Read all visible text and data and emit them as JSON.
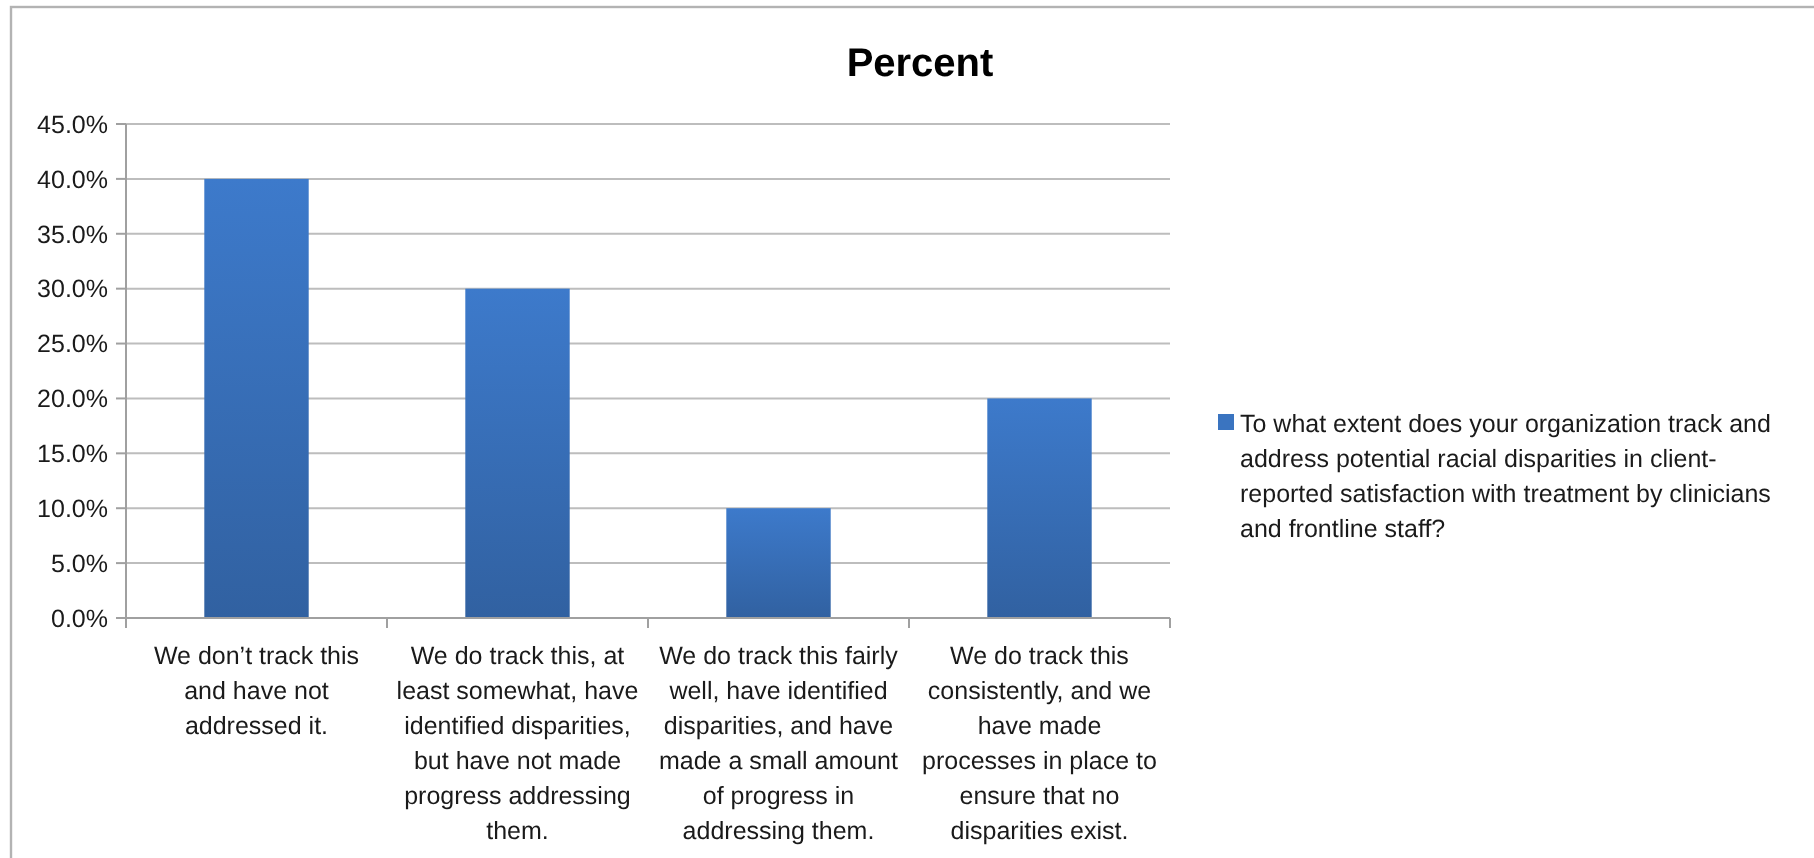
{
  "chart_data": {
    "type": "bar",
    "title": "Percent",
    "categories": [
      "We don’t track this and have not addressed it.",
      "We do track this, at least somewhat, have identified disparities, but have not made progress addressing them.",
      "We do track this fairly well, have identified disparities, and have made a small amount of progress in addressing them.",
      "We do track this consistently, and we have made processes in place to ensure that no disparities exist."
    ],
    "series": [
      {
        "name": "To what extent does your organization track and address potential racial disparities in client-reported satisfaction with treatment by clinicians and frontline staff?",
        "color": "#3a74c0",
        "values": [
          40,
          30,
          10,
          20
        ]
      }
    ],
    "ylim": [
      0,
      45
    ],
    "yticks": [
      {
        "value": 0,
        "label": "0.0%"
      },
      {
        "value": 5,
        "label": "5.0%"
      },
      {
        "value": 10,
        "label": "10.0%"
      },
      {
        "value": 15,
        "label": "15.0%"
      },
      {
        "value": 20,
        "label": "20.0%"
      },
      {
        "value": 25,
        "label": "25.0%"
      },
      {
        "value": 30,
        "label": "30.0%"
      },
      {
        "value": 35,
        "label": "35.0%"
      },
      {
        "value": 40,
        "label": "40.0%"
      },
      {
        "value": 45,
        "label": "45.0%"
      }
    ],
    "grid": "y",
    "legend": "right"
  }
}
